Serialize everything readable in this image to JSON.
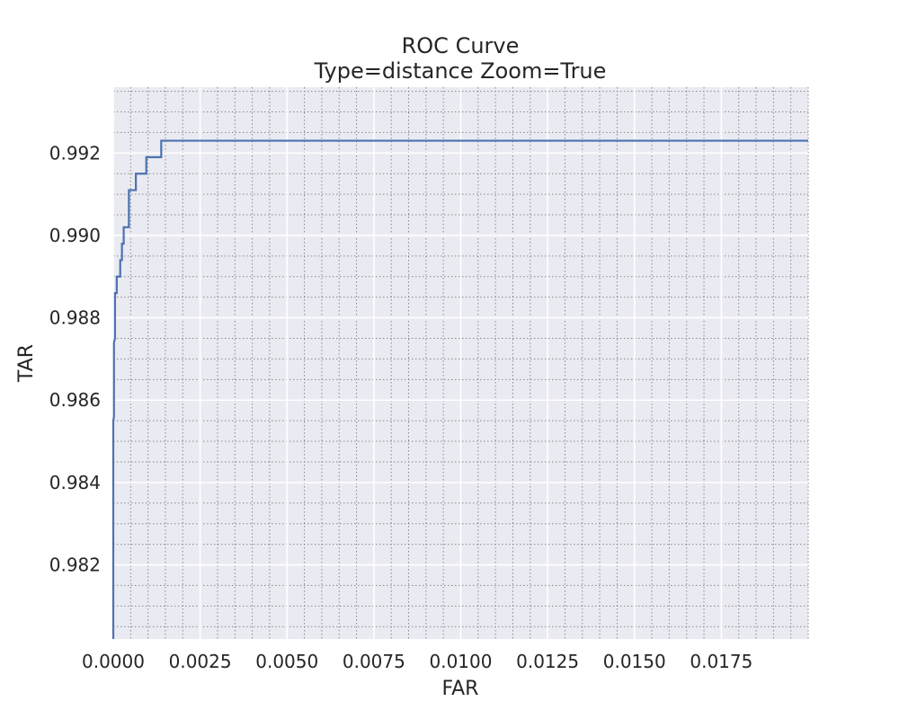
{
  "chart_data": {
    "type": "line",
    "title": "ROC Curve",
    "subtitle": "Type=distance Zoom=True",
    "xlabel": "FAR",
    "ylabel": "TAR",
    "xlim": [
      0,
      0.02
    ],
    "ylim": [
      0.9802,
      0.9936
    ],
    "x_ticks": [
      0.0,
      0.0025,
      0.005,
      0.0075,
      0.01,
      0.0125,
      0.015,
      0.0175
    ],
    "x_tick_labels": [
      "0.0000",
      "0.0025",
      "0.0050",
      "0.0075",
      "0.0100",
      "0.0125",
      "0.0150",
      "0.0175"
    ],
    "y_ticks": [
      0.982,
      0.984,
      0.986,
      0.988,
      0.99,
      0.992
    ],
    "y_tick_labels": [
      "0.982",
      "0.984",
      "0.986",
      "0.988",
      "0.990",
      "0.992"
    ],
    "grid": true,
    "minor_grid": true,
    "background_color": "#eaeaf2",
    "line_color": "#4c72b0",
    "series": [
      {
        "x": [
          0.0,
          0.0,
          2e-05,
          2e-05,
          5e-05,
          5e-05,
          0.0001,
          0.0001,
          0.0002,
          0.0002,
          0.00025,
          0.00025,
          0.0003,
          0.0003,
          0.00045,
          0.00045,
          0.00065,
          0.00065,
          0.00095,
          0.00095,
          0.00138,
          0.00138,
          0.02
        ],
        "y": [
          0.9802,
          0.9855,
          0.9856,
          0.9874,
          0.9875,
          0.9886,
          0.9886,
          0.989,
          0.989,
          0.9894,
          0.9894,
          0.9898,
          0.9898,
          0.9902,
          0.9902,
          0.9911,
          0.9911,
          0.9915,
          0.9915,
          0.9919,
          0.9919,
          0.9923,
          0.9923
        ]
      }
    ]
  }
}
